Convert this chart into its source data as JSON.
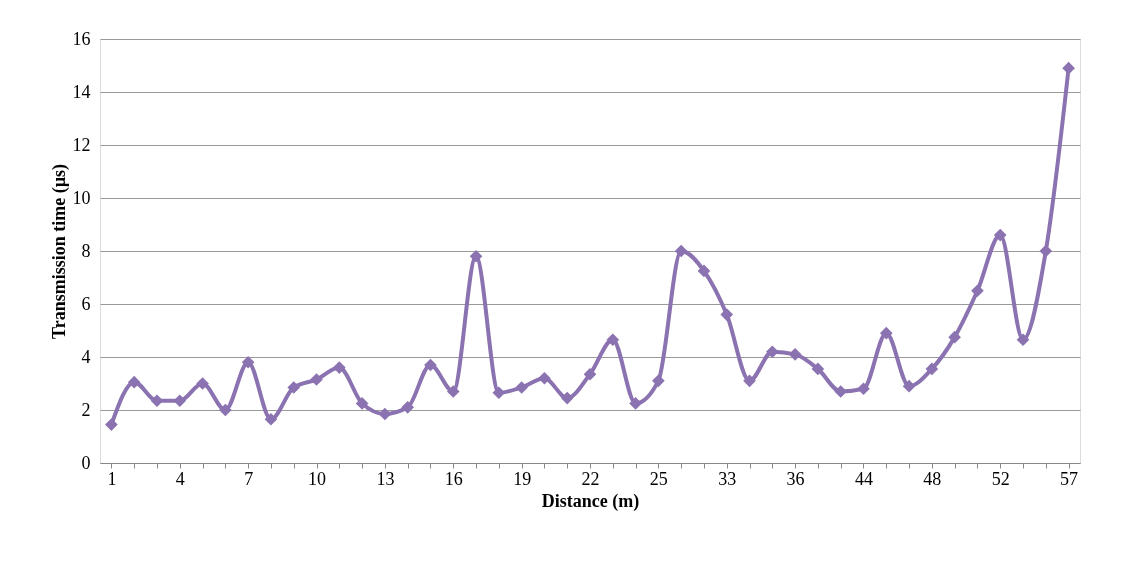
{
  "chart_data": {
    "type": "line",
    "xlabel": "Distance (m)",
    "ylabel": "Transmission time (µs)",
    "categories": [
      "1",
      null,
      null,
      "4",
      null,
      null,
      "7",
      null,
      null,
      "10",
      null,
      null,
      "13",
      null,
      null,
      "16",
      null,
      null,
      "19",
      null,
      null,
      "22",
      null,
      null,
      "25",
      null,
      null,
      "33",
      null,
      null,
      "36",
      null,
      null,
      "44",
      null,
      null,
      "48",
      null,
      null,
      "52",
      null,
      null,
      "57"
    ],
    "series": [
      {
        "color": "#8b72b0",
        "values": [
          1.45,
          3.05,
          2.35,
          2.35,
          3.0,
          2.0,
          3.8,
          1.65,
          2.85,
          3.15,
          3.6,
          2.25,
          1.85,
          2.1,
          3.7,
          2.7,
          7.8,
          2.65,
          2.85,
          3.2,
          2.45,
          3.35,
          4.65,
          2.25,
          3.1,
          8.0,
          7.25,
          5.6,
          3.1,
          4.2,
          4.1,
          3.55,
          2.7,
          2.8,
          4.9,
          2.9,
          3.55,
          4.75,
          6.5,
          8.6,
          4.65,
          8.0,
          14.9
        ]
      }
    ],
    "ylim": [
      0,
      16
    ],
    "yticks": [
      0,
      2,
      4,
      6,
      8,
      10,
      12,
      14,
      16
    ],
    "grid": "y",
    "marker": "diamond",
    "line_style": "solid"
  }
}
